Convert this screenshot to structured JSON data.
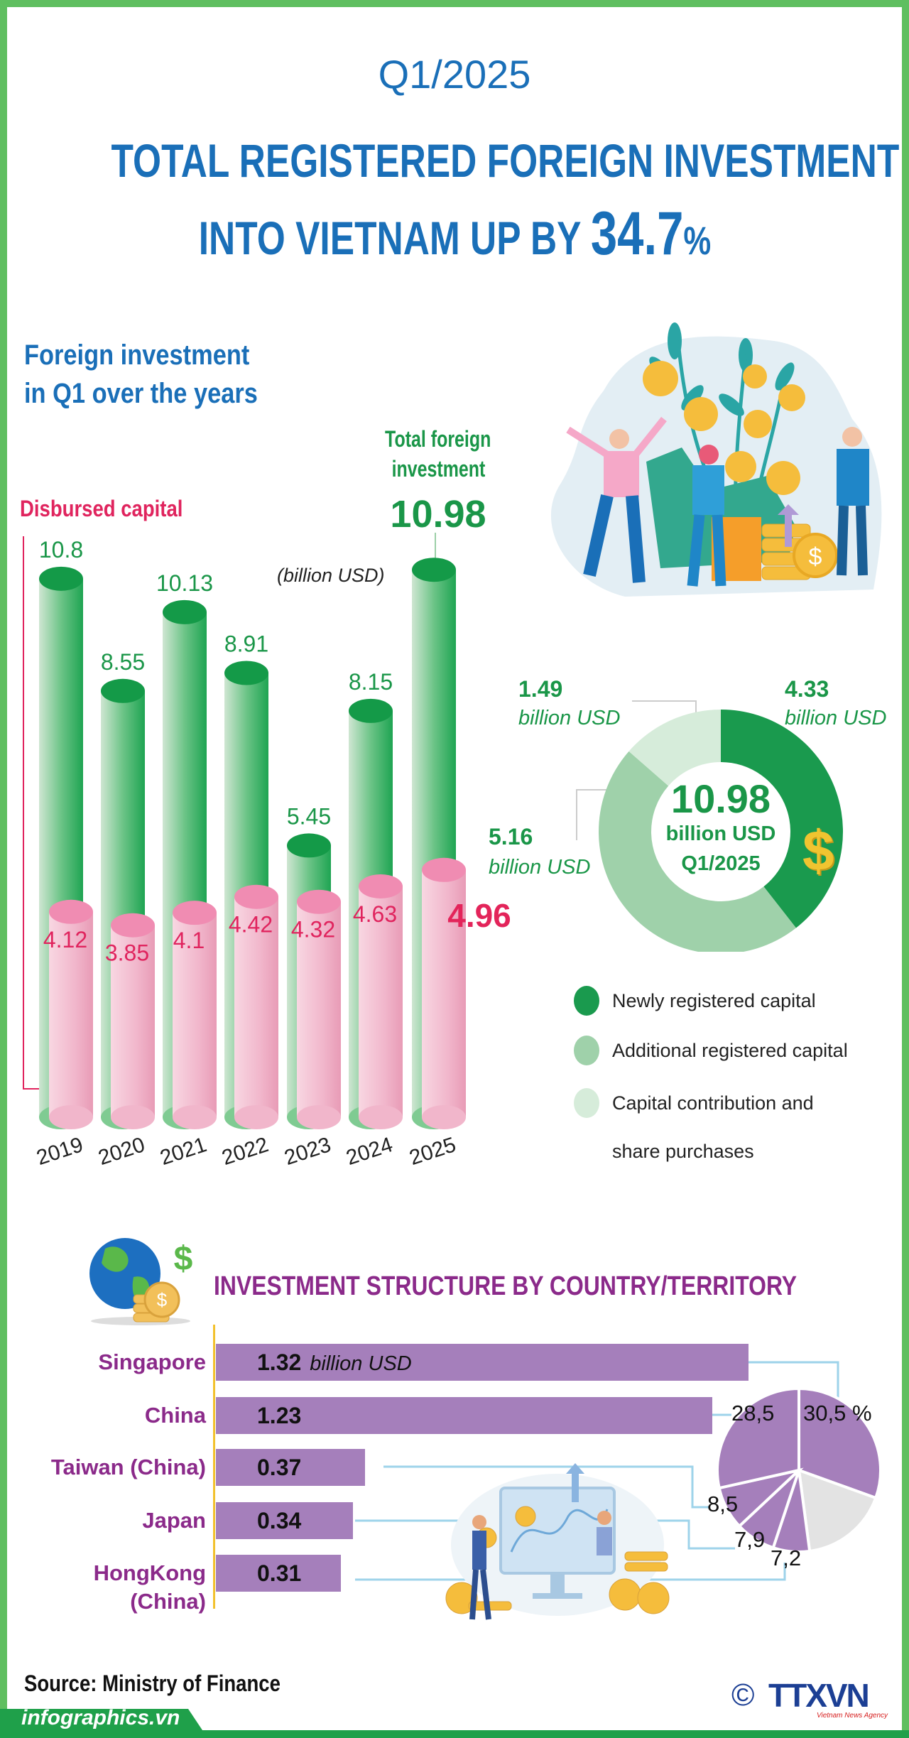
{
  "header": {
    "period": "Q1/2025",
    "title_line1": "TOTAL REGISTERED FOREIGN INVESTMENT",
    "title_line2": "INTO VIETNAM UP BY",
    "growth_value": "34.7",
    "growth_unit": "%"
  },
  "section1": {
    "heading_line1": "Foreign investment",
    "heading_line2": "in Q1 over the years",
    "disbursed_label": "Disbursed capital",
    "total_label_line1": "Total foreign",
    "total_label_line2": "investment",
    "total_value": "10.98",
    "unit_note": "(billion USD)"
  },
  "colors": {
    "title_blue": "#1a6fb8",
    "green": "#1a9648",
    "pink": "#e0245e",
    "purple": "#8b2a8a",
    "bar_purple": "#a57fbb",
    "border_green": "#5fbf60"
  },
  "chart_data": [
    {
      "type": "bar",
      "title": "Foreign investment in Q1 over the years",
      "categories": [
        "2019",
        "2020",
        "2021",
        "2022",
        "2023",
        "2024",
        "2025"
      ],
      "series": [
        {
          "name": "Total foreign investment",
          "values": [
            10.8,
            8.55,
            10.13,
            8.91,
            5.45,
            8.15,
            10.98
          ],
          "labels": [
            "10.8",
            "8.55",
            "10.13",
            "8.91",
            "5.45",
            "8.15",
            "10.98"
          ],
          "color": "#1a9648"
        },
        {
          "name": "Disbursed capital",
          "values": [
            4.12,
            3.85,
            4.1,
            4.42,
            4.32,
            4.63,
            4.96
          ],
          "labels": [
            "4.12",
            "3.85",
            "4.1",
            "4.42",
            "4.32",
            "4.63",
            "4.96"
          ],
          "color": "#e0245e"
        }
      ],
      "ylabel": "(billion USD)",
      "ylim": [
        0,
        10.98
      ]
    },
    {
      "type": "pie",
      "variant": "donut",
      "center_value": "10.98",
      "center_unit": "billion USD",
      "center_period": "Q1/2025",
      "slices": [
        {
          "name": "Newly registered capital",
          "value": 4.33,
          "label": "4.33",
          "unit": "billion USD",
          "color": "#1a9a4e"
        },
        {
          "name": "Additional registered capital",
          "value": 5.16,
          "label": "5.16",
          "unit": "billion USD",
          "color": "#9fd1aa"
        },
        {
          "name": "Capital contribution and share purchases",
          "value": 1.49,
          "label": "1.49",
          "unit": "billion USD",
          "color": "#d6ecda"
        }
      ],
      "legend": [
        "Newly registered capital",
        "Additional registered capital",
        "Capital contribution and",
        "share purchases"
      ],
      "legend_position": "bottom"
    },
    {
      "type": "bar",
      "orientation": "horizontal",
      "title": "INVESTMENT STRUCTURE BY COUNTRY/TERRITORY",
      "categories": [
        "Singapore",
        "China",
        "Taiwan (China)",
        "Japan",
        "HongKong (China)"
      ],
      "values": [
        1.32,
        1.23,
        0.37,
        0.34,
        0.31
      ],
      "labels": [
        "1.32",
        "1.23",
        "0.37",
        "0.34",
        "0.31"
      ],
      "unit": "billion USD",
      "color": "#a57fbb"
    },
    {
      "type": "pie",
      "slices": [
        {
          "category": "Singapore",
          "value": 30.5,
          "label": "30,5 %",
          "color": "#a57fbb"
        },
        {
          "category": "Others",
          "value": 17.4,
          "label": "",
          "color": "#e3e3e3"
        },
        {
          "category": "HongKong (China)",
          "value": 7.2,
          "label": "7,2",
          "color": "#a57fbb"
        },
        {
          "category": "Japan",
          "value": 7.9,
          "label": "7,9",
          "color": "#a57fbb"
        },
        {
          "category": "Taiwan (China)",
          "value": 8.5,
          "label": "8,5",
          "color": "#a57fbb"
        },
        {
          "category": "China",
          "value": 28.5,
          "label": "28,5",
          "color": "#a57fbb"
        }
      ]
    }
  ],
  "section2": {
    "title": "INVESTMENT STRUCTURE BY COUNTRY/TERRITORY",
    "country_line2_hk": "(China)"
  },
  "footer": {
    "source": "Source: Ministry of Finance",
    "site": "infographics.vn",
    "copyright_symbol": "©",
    "logo_text": "TTXVN",
    "logo_subtitle": "Vietnam News Agency"
  },
  "icons": [
    "money-tree-illustration",
    "dollar-sign-icon",
    "globe-money-icon",
    "investors-illustration"
  ]
}
